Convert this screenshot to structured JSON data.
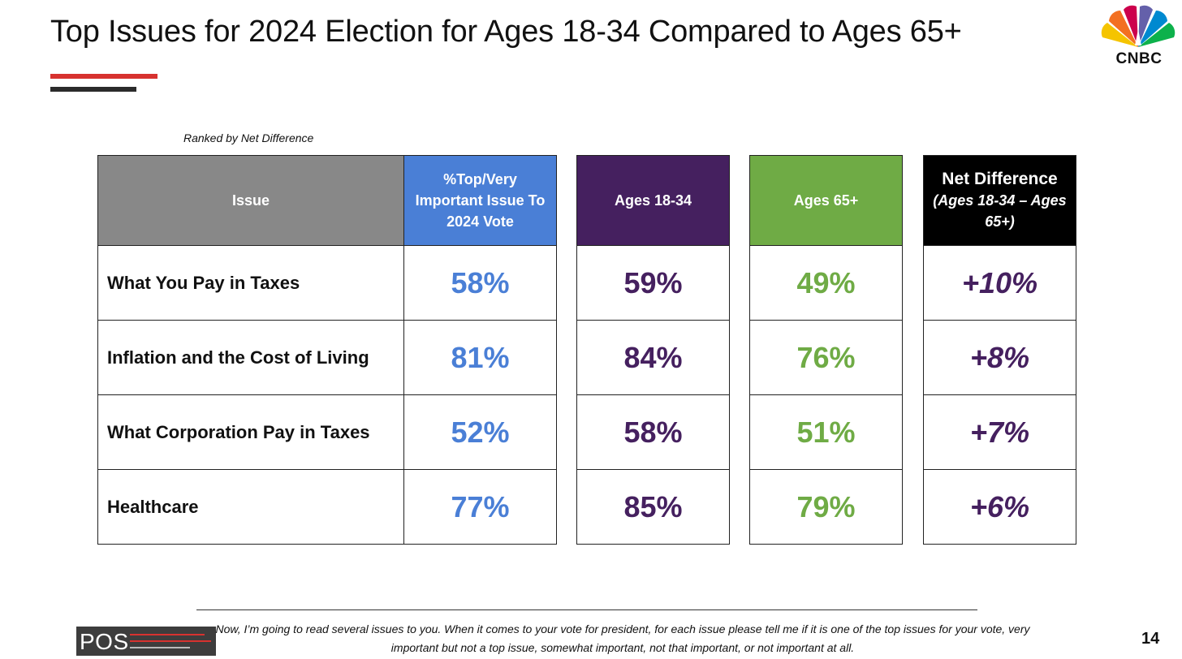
{
  "title": "Top Issues for 2024 Election for Ages 18-34 Compared to Ages 65+",
  "brand": {
    "logo_text": "CNBC",
    "pos_logo_text": "POS"
  },
  "subtitle": "Ranked by Net Difference",
  "colors": {
    "accent_red": "#d7322f",
    "top_issue_blue": "#4a7fd6",
    "ages_18_34_purple": "#45205f",
    "ages_65_green": "#6fab45",
    "issue_header_gray": "#888888",
    "net_header_black": "#000000"
  },
  "chart_data": {
    "type": "table",
    "title": "Top Issues for 2024 Election for Ages 18-34 Compared to Ages 65+",
    "subtitle": "Ranked by Net Difference",
    "columns": {
      "issue": "Issue",
      "top": "%Top/Very Important Issue To 2024 Vote",
      "young": "Ages 18-34",
      "old": "Ages 65+",
      "net_main": "Net Difference",
      "net_sub": "(Ages 18-34 – Ages 65+)"
    },
    "rows": [
      {
        "issue": "What You Pay in Taxes",
        "top": "58%",
        "young": "59%",
        "old": "49%",
        "net": "+10%"
      },
      {
        "issue": "Inflation and the Cost of Living",
        "top": "81%",
        "young": "84%",
        "old": "76%",
        "net": "+8%"
      },
      {
        "issue": "What Corporation Pay in Taxes",
        "top": "52%",
        "young": "58%",
        "old": "51%",
        "net": "+7%"
      },
      {
        "issue": "Healthcare",
        "top": "77%",
        "young": "85%",
        "old": "79%",
        "net": "+6%"
      }
    ]
  },
  "footnote": "Now, I’m going to read several issues to you. When it comes to your vote for president, for each issue please tell me if it is one of the top issues for your vote, very important but not a top issue, somewhat important, not that important, or not important at all.",
  "page_number": "14"
}
